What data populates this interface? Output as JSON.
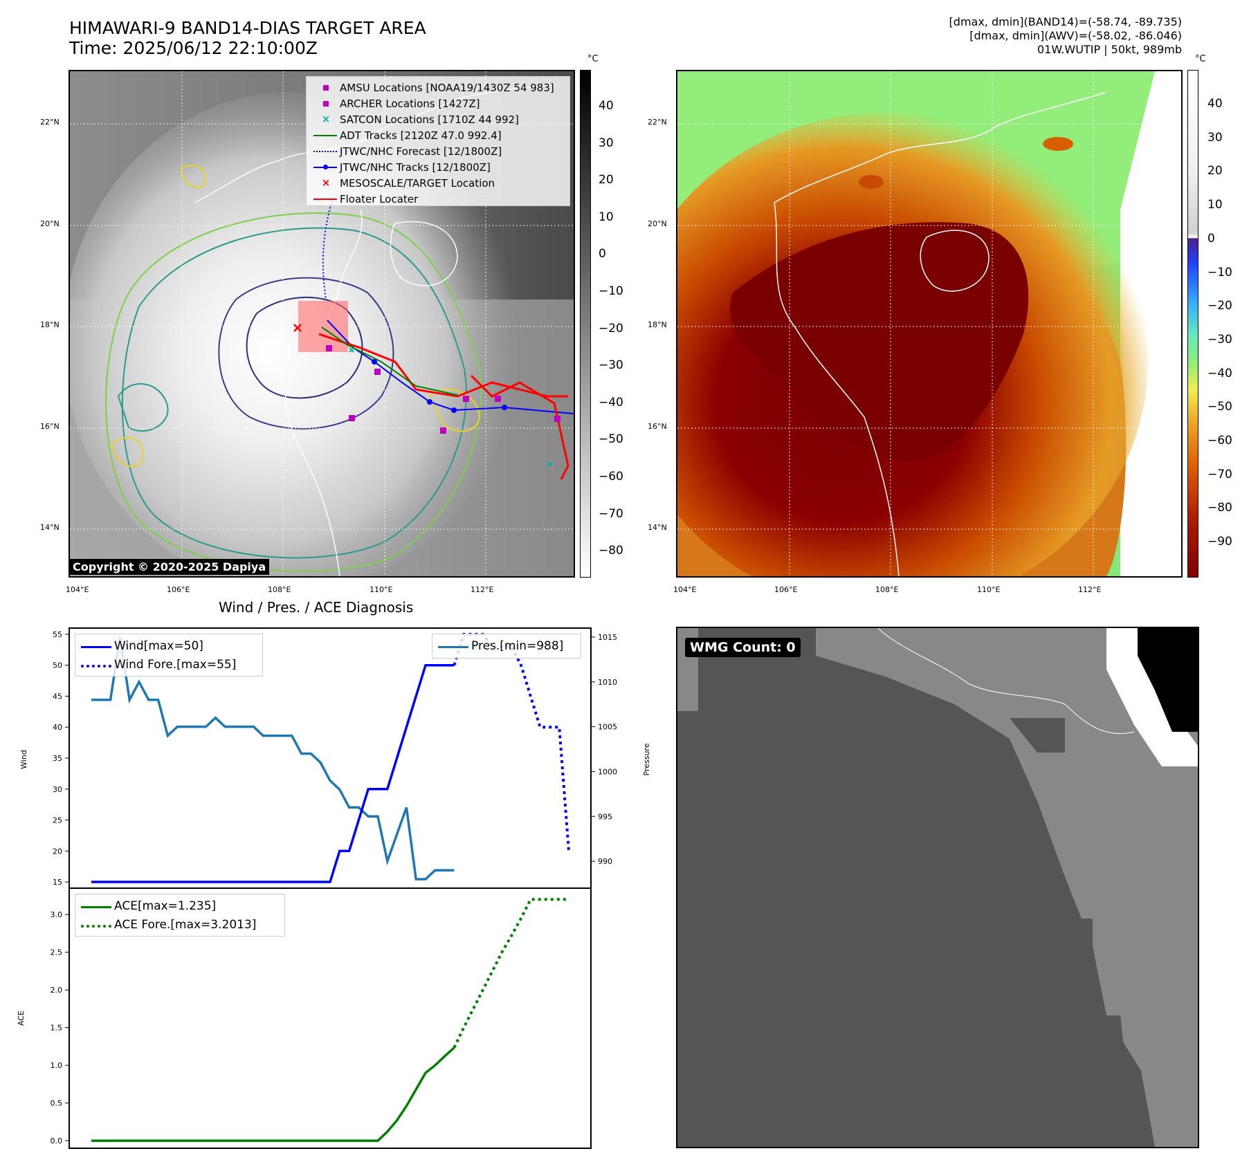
{
  "header": {
    "title_line1": "HIMAWARI-9 BAND14-DIAS TARGET AREA",
    "title_line2": "Time: 2025/06/12 22:10:00Z",
    "info_line1": "[dmax, dmin](BAND14)=(-58.74, -89.735)",
    "info_line2": "[dmax, dmin](AWV)=(-58.02, -86.046)",
    "info_line3": "01W.WUTIP | 50kt, 989mb"
  },
  "map_axes": {
    "lat_labels": [
      "22°N",
      "20°N",
      "18°N",
      "16°N",
      "14°N"
    ],
    "lon_labels": [
      "104°E",
      "106°E",
      "108°E",
      "110°E",
      "112°E"
    ]
  },
  "left_map": {
    "copyright": "Copyright © 2020-2025 Dapiya",
    "colorbar_unit": "°C",
    "colorbar_ticks": [
      "40",
      "30",
      "20",
      "10",
      "0",
      "−10",
      "−20",
      "−30",
      "−40",
      "−50",
      "−60",
      "−70",
      "−80"
    ],
    "legend": [
      {
        "label": "AMSU Locations [NOAA19/1430Z 54 983]",
        "marker": "square",
        "color": "#c000c0"
      },
      {
        "label": "ARCHER Locations [1427Z]",
        "marker": "square",
        "color": "#c000c0"
      },
      {
        "label": "SATCON Locations [1710Z 44 992]",
        "marker": "x",
        "color": "#00b0b0"
      },
      {
        "label": "ADT Tracks [2120Z 47.0 992.4]",
        "marker": "line",
        "color": "#008000"
      },
      {
        "label": "JTWC/NHC Forecast [12/1800Z]",
        "marker": "dotted",
        "color": "#0000ff"
      },
      {
        "label": "JTWC/NHC Tracks [12/1800Z]",
        "marker": "line-dot",
        "color": "#0000ff"
      },
      {
        "label": "MESOSCALE/TARGET Location",
        "marker": "x",
        "color": "#ff0000"
      },
      {
        "label": "Floater Locater",
        "marker": "line",
        "color": "#ff0000"
      }
    ]
  },
  "right_map": {
    "colorbar_unit": "°C",
    "colorbar_ticks": [
      "40",
      "30",
      "20",
      "10",
      "0",
      "−10",
      "−20",
      "−30",
      "−40",
      "−50",
      "−60",
      "−70",
      "−80",
      "−90"
    ]
  },
  "diag": {
    "title": "Wind / Pres. / ACE Diagnosis",
    "wind_axis_label": "Wind",
    "pressure_axis_label": "Pressure",
    "ace_axis_label": "ACE",
    "wind_ticks": [
      "55",
      "50",
      "45",
      "40",
      "35",
      "30",
      "25",
      "20",
      "15"
    ],
    "pres_ticks": [
      "1015",
      "1010",
      "1005",
      "1000",
      "995",
      "990"
    ],
    "ace_ticks": [
      "3.0",
      "2.5",
      "2.0",
      "1.5",
      "1.0",
      "0.5",
      "0.0"
    ],
    "legend_wind": "Wind[max=50]",
    "legend_wind_fore": "Wind Fore.[max=55]",
    "legend_pres": "Pres.[min=988]",
    "legend_ace": "ACE[max=1.235]",
    "legend_ace_fore": "ACE Fore.[max=3.2013]"
  },
  "wmg": {
    "label": "WMG Count: 0"
  },
  "chart_data": [
    {
      "type": "line",
      "title": "Wind / Pres. / ACE Diagnosis",
      "ylabel": "Wind",
      "ylim": [
        14,
        56
      ],
      "series": [
        {
          "name": "Wind[max=50]",
          "style": "solid",
          "color": "#0000ff",
          "x": [
            0,
            1,
            2,
            3,
            4,
            5,
            6,
            7,
            8,
            9,
            10,
            11,
            12,
            13,
            14,
            15,
            16,
            17,
            18,
            19,
            20,
            21,
            22,
            23,
            24,
            25,
            26,
            27,
            28,
            29,
            30,
            31,
            32,
            33,
            34,
            35,
            36,
            37,
            38
          ],
          "values": [
            15,
            15,
            15,
            15,
            15,
            15,
            15,
            15,
            15,
            15,
            15,
            15,
            15,
            15,
            15,
            15,
            15,
            15,
            15,
            15,
            15,
            15,
            15,
            15,
            15,
            15,
            20,
            20,
            25,
            30,
            30,
            30,
            35,
            40,
            45,
            50,
            50,
            50,
            50
          ]
        },
        {
          "name": "Wind Fore.[max=55]",
          "style": "dotted",
          "color": "#0000ff",
          "x": [
            38,
            39,
            40,
            41,
            42,
            43,
            44,
            45,
            46,
            47,
            48,
            49,
            50
          ],
          "values": [
            50,
            55,
            55,
            55,
            53,
            53,
            53,
            50,
            45,
            40,
            40,
            40,
            20
          ]
        }
      ]
    },
    {
      "type": "line",
      "ylabel": "Pressure",
      "ylim": [
        987,
        1016
      ],
      "series": [
        {
          "name": "Pres.[min=988]",
          "color": "#1f77b4",
          "x": [
            0,
            1,
            2,
            3,
            4,
            5,
            6,
            7,
            8,
            9,
            10,
            11,
            12,
            13,
            14,
            15,
            16,
            17,
            18,
            19,
            20,
            21,
            22,
            23,
            24,
            25,
            26,
            27,
            28,
            29,
            30,
            31,
            32,
            33,
            34,
            35,
            36,
            37,
            38
          ],
          "values": [
            1008,
            1008,
            1008,
            1015,
            1008,
            1010,
            1008,
            1008,
            1004,
            1005,
            1005,
            1005,
            1005,
            1006,
            1005,
            1005,
            1005,
            1005,
            1004,
            1004,
            1004,
            1004,
            1002,
            1002,
            1001,
            999,
            998,
            996,
            996,
            995,
            995,
            990,
            993,
            996,
            988,
            988,
            989,
            989,
            989
          ]
        }
      ]
    },
    {
      "type": "line",
      "ylabel": "ACE",
      "ylim": [
        -0.1,
        3.35
      ],
      "series": [
        {
          "name": "ACE[max=1.235]",
          "style": "solid",
          "color": "#008000",
          "x": [
            0,
            1,
            2,
            3,
            4,
            5,
            6,
            7,
            8,
            9,
            10,
            11,
            12,
            13,
            14,
            15,
            16,
            17,
            18,
            19,
            20,
            21,
            22,
            23,
            24,
            25,
            26,
            27,
            28,
            29,
            30,
            31,
            32,
            33,
            34,
            35,
            36,
            37,
            38
          ],
          "values": [
            0,
            0,
            0,
            0,
            0,
            0,
            0,
            0,
            0,
            0,
            0,
            0,
            0,
            0,
            0,
            0,
            0,
            0,
            0,
            0,
            0,
            0,
            0,
            0,
            0,
            0,
            0,
            0,
            0,
            0,
            0,
            0.12,
            0.27,
            0.46,
            0.68,
            0.9,
            1.0,
            1.12,
            1.235
          ]
        },
        {
          "name": "ACE Fore.[max=3.2013]",
          "style": "dotted",
          "color": "#008000",
          "x": [
            38,
            39,
            40,
            41,
            42,
            43,
            44,
            45,
            46,
            47,
            48,
            49,
            50
          ],
          "values": [
            1.235,
            1.5,
            1.75,
            2.0,
            2.25,
            2.5,
            2.72,
            2.95,
            3.2,
            3.2,
            3.2,
            3.2,
            3.2
          ]
        }
      ]
    }
  ]
}
